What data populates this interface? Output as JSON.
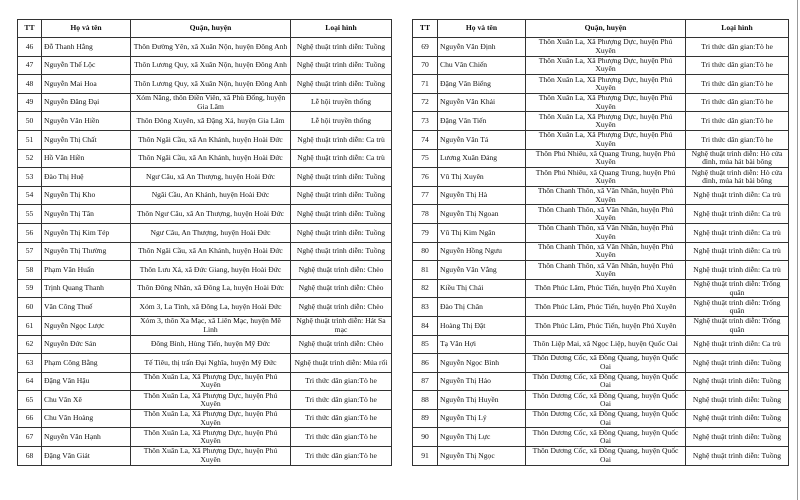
{
  "headers": {
    "tt": "TT",
    "name": "Họ và tên",
    "district": "Quận, huyện",
    "type": "Loại hình"
  },
  "left_rows": [
    [
      "46",
      "Đỗ Thanh Hằng",
      "Thôn Đường Yên, xã Xuân Nộn, huyện Đông Anh",
      "Nghệ thuật trình diễn: Tuồng"
    ],
    [
      "47",
      "Nguyễn Thế Lộc",
      "Thôn Lương Quy, xã Xuân Nộn, huyện Đông Anh",
      "Nghệ thuật trình diễn: Tuồng"
    ],
    [
      "48",
      "Nguyễn Mai Hoa",
      "Thôn Lương Quy, xã Xuân Nộn, huyện Đông Anh",
      "Nghệ thuật trình diễn: Tuồng"
    ],
    [
      "49",
      "Nguyễn Đăng Đại",
      "Xóm Năng, thôn Điền Viên, xã Phù Đổng, huyện Gia Lâm",
      "Lễ hội truyền thống"
    ],
    [
      "50",
      "Nguyễn Văn Hiền",
      "Thôn Đông Xuyên, xã Đặng Xá, huyện Gia Lâm",
      "Lễ hội truyền thống"
    ],
    [
      "51",
      "Nguyễn Thị Chất",
      "Thôn Ngãi Cầu, xã An Khánh, huyện Hoài Đức",
      "Nghệ thuật trình diễn: Ca trù"
    ],
    [
      "52",
      "Hồ Văn Hiền",
      "Thôn Ngãi Cầu, xã An Khánh, huyện Hoài Đức",
      "Nghệ thuật trình diễn: Ca trù"
    ],
    [
      "53",
      "Đào Thị Huệ",
      "Ngư Câu, xã An Thượng, huyện Hoài Đức",
      "Nghệ thuật trình diễn: Tuồng"
    ],
    [
      "54",
      "Nguyễn Thị Kho",
      "Ngãi Cầu, An Khánh, huyện Hoài Đức",
      "Nghệ thuật trình diễn: Tuồng"
    ],
    [
      "55",
      "Nguyễn Thị Tân",
      "Thôn Ngư Câu, xã An Thượng, huyện Hoài Đức",
      "Nghệ thuật trình diễn: Tuồng"
    ],
    [
      "56",
      "Nguyễn Thị Kim Tép",
      "Ngư Câu, An Thượng, huyện Hoài Đức",
      "Nghệ thuật trình diễn: Tuồng"
    ],
    [
      "57",
      "Nguyễn Thị Thường",
      "Thôn Ngãi Cầu, xã An Khánh, huyện Hoài Đức",
      "Nghệ thuật trình diễn: Tuồng"
    ],
    [
      "58",
      "Phạm Văn Huấn",
      "Thôn Lưu Xá, xã Đức Giang, huyện Hoài Đức",
      "Nghệ thuật trình diễn: Chèo"
    ],
    [
      "59",
      "Trịnh Quang Thanh",
      "Thôn Đông Nhân, xã Đông La, huyện Hoài Đức",
      "Nghệ thuật trình diễn: Chèo"
    ],
    [
      "60",
      "Văn Công Thuế",
      "Xóm 3, La Tinh, xã Đông La, huyện Hoài Đức",
      "Nghệ thuật trình diễn: Chèo"
    ],
    [
      "61",
      "Nguyễn Ngọc Lược",
      "Xóm 3, thôn Xa Mạc, xã Liên Mạc, huyện Mê Linh",
      "Nghệ thuật trình diễn: Hát Sa mạc"
    ],
    [
      "62",
      "Nguyễn Đức Sản",
      "Đông Bình, Hùng Tiến, huyện Mỹ Đức",
      "Nghệ thuật trình diễn: Chèo"
    ],
    [
      "63",
      "Phạm Công Bằng",
      "Tế Tiêu, thị trấn Đại Nghĩa, huyện Mỹ Đức",
      "Nghệ thuật trình diễn: Múa rối"
    ],
    [
      "64",
      "Đặng Văn Hậu",
      "Thôn Xuân La, Xã Phượng Dực, huyện Phú Xuyên",
      "Tri thức dân gian:Tò he"
    ],
    [
      "65",
      "Chu Văn Xê",
      "Thôn Xuân La, Xã Phượng Dực, huyện Phú Xuyên",
      "Tri thức dân gian:Tò he"
    ],
    [
      "66",
      "Chu Văn Hoàng",
      "Thôn Xuân La, Xã Phượng Dực, huyện Phú Xuyên",
      "Tri thức dân gian:Tò he"
    ],
    [
      "67",
      "Nguyễn Văn Hạnh",
      "Thôn Xuân La, Xã Phượng Dực, huyện Phú Xuyên",
      "Tri thức dân gian:Tò he"
    ],
    [
      "68",
      "Đặng Văn Giát",
      "Thôn Xuân La, Xã Phượng Dực, huyện Phú Xuyên",
      "Tri thức dân gian:Tò he"
    ]
  ],
  "right_rows": [
    [
      "69",
      "Nguyễn Văn Định",
      "Thôn Xuân La, Xã Phượng Dực, huyện Phú Xuyên",
      "Tri thức dân gian:Tò he"
    ],
    [
      "70",
      "Chu Văn Chiến",
      "Thôn Xuân La, Xã Phượng Dực, huyện Phú Xuyên",
      "Tri thức dân gian:Tò he"
    ],
    [
      "71",
      "Đặng Văn Biểng",
      "Thôn Xuân La, Xã Phượng Dực, huyện Phú Xuyên",
      "Tri thức dân gian:Tò he"
    ],
    [
      "72",
      "Nguyễn Văn Khải",
      "Thôn Xuân La, Xã Phượng Dực, huyện Phú Xuyên",
      "Tri thức dân gian:Tò he"
    ],
    [
      "73",
      "Đặng Văn Tiến",
      "Thôn Xuân La, Xã Phượng Dực, huyện Phú Xuyên",
      "Tri thức dân gian:Tò he"
    ],
    [
      "74",
      "Nguyễn Văn Tá",
      "Thôn Xuân La, Xã Phượng Dực, huyện Phú Xuyên",
      "Tri thức dân gian:Tò he"
    ],
    [
      "75",
      "Lương Xuân Đảng",
      "Thôn Phú Nhiêu, xã Quang Trung, huyện Phú Xuyên",
      "Nghệ thuật trình diễn: Hò cửa đình, múa hát bài bông"
    ],
    [
      "76",
      "Vũ Thị Xuyên",
      "Thôn Phú Nhiêu, xã Quang Trung, huyện Phú Xuyên",
      "Nghệ thuật trình diễn: Hò cửa đình, múa hát bài bông"
    ],
    [
      "77",
      "Nguyễn Thị Hà",
      "Thôn Chanh Thôn, xã Văn Nhân, huyện Phú Xuyên",
      "Nghệ thuật trình diễn: Ca trù"
    ],
    [
      "78",
      "Nguyễn Thị Ngoan",
      "Thôn Chanh Thôn, xã Văn Nhân, huyện Phú Xuyên",
      "Nghệ thuật trình diễn: Ca trù"
    ],
    [
      "79",
      "Vũ Thị Kim Ngân",
      "Thôn Chanh Thôn, xã Văn Nhân, huyện Phú Xuyên",
      "Nghệ thuật trình diễn: Ca trù"
    ],
    [
      "80",
      "Nguyễn Hồng Ngưu",
      "Thôn Chanh Thôn, xã Văn Nhân, huyện Phú Xuyên",
      "Nghệ thuật trình diễn: Ca trù"
    ],
    [
      "81",
      "Nguyễn Văn Vẳng",
      "Thôn Chanh Thôn, xã Văn Nhân, huyện Phú Xuyên",
      "Nghệ thuật trình diễn: Ca trù"
    ],
    [
      "82",
      "Kiều Thị Chải",
      "Thôn Phúc Lâm, Phúc Tiến, huyện Phú Xuyên",
      "Nghệ thuật trình diễn: Trống quân"
    ],
    [
      "83",
      "Đào Thị Chăn",
      "Thôn Phúc Lâm, Phúc Tiến, huyện Phú Xuyên",
      "Nghệ thuật trình diễn: Trống quân"
    ],
    [
      "84",
      "Hoàng Thị Đật",
      "Thôn Phúc Lâm, Phúc Tiến, huyện Phú Xuyên",
      "Nghệ thuật trình diễn: Trống quân"
    ],
    [
      "85",
      "Tạ Văn Hợi",
      "Thôn Liệp Mai, xã Ngọc Liệp, huyện Quốc Oai",
      "Nghệ thuật trình diễn: Ca trù"
    ],
    [
      "86",
      "Nguyễn Ngọc Bình",
      "Thôn Dương Cốc, xã Đồng Quang, huyện Quốc Oai",
      "Nghệ thuật trình diễn: Tuồng"
    ],
    [
      "87",
      "Nguyễn Thị Hảo",
      "Thôn Dương Cốc, xã Đồng Quang, huyện Quốc Oai",
      "Nghệ thuật trình diễn: Tuồng"
    ],
    [
      "88",
      "Nguyễn Thị Huyền",
      "Thôn Dương Cốc, xã Đồng Quang, huyện Quốc Oai",
      "Nghệ thuật trình diễn: Tuồng"
    ],
    [
      "89",
      "Nguyễn Thị Lý",
      "Thôn Dương Cốc, xã Đồng Quang, huyện Quốc Oai",
      "Nghệ thuật trình diễn: Tuồng"
    ],
    [
      "90",
      "Nguyễn Thị Lực",
      "Thôn Dương Cốc, xã Đồng Quang, huyện Quốc Oai",
      "Nghệ thuật trình diễn: Tuồng"
    ],
    [
      "91",
      "Nguyễn Thị Ngọc",
      "Thôn Dương Cốc, xã Đồng Quang, huyện Quốc Oai",
      "Nghệ thuật trình diễn: Tuồng"
    ]
  ]
}
